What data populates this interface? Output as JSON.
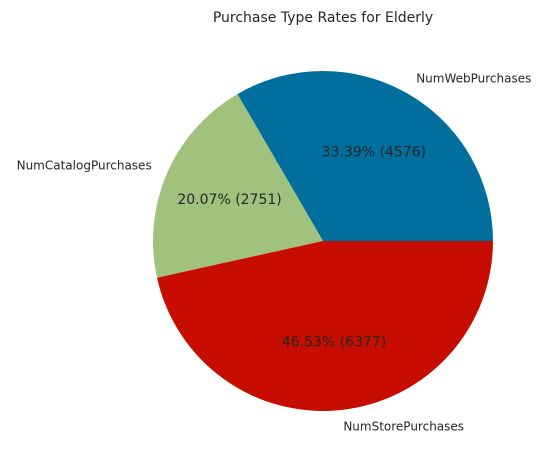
{
  "chart_data": {
    "type": "pie",
    "title": "Purchase Type Rates for Elderly",
    "slices": [
      {
        "label": "NumWebPurchases",
        "value": 4576,
        "percent": 33.39,
        "pct_label": "33.39%  (4576)",
        "color": "#006f9e"
      },
      {
        "label": "NumCatalogPurchases",
        "value": 2751,
        "percent": 20.07,
        "pct_label": "20.07%  (2751)",
        "color": "#a0c27c"
      },
      {
        "label": "NumStorePurchases",
        "value": 6377,
        "percent": 46.53,
        "pct_label": "46.53%  (6377)",
        "color": "#c70c00"
      }
    ],
    "start_angle_deg": 0,
    "direction": "counterclockwise",
    "legend": "none"
  }
}
